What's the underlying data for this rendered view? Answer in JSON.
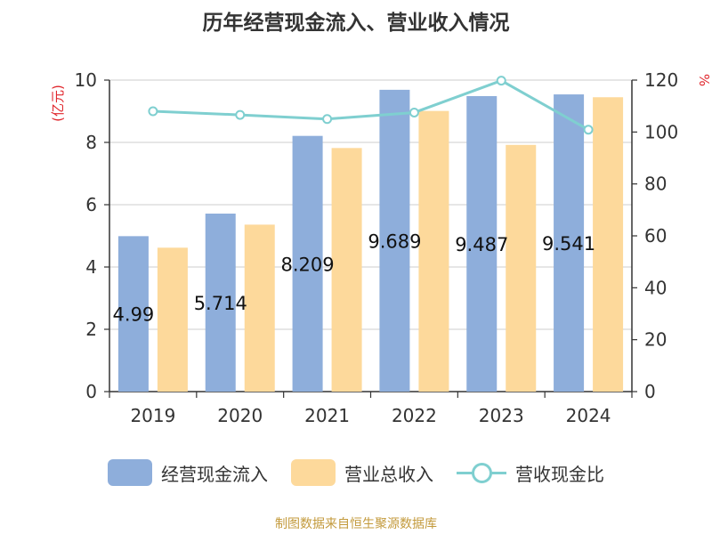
{
  "chart_data": {
    "type": "bar",
    "title": "历年经营现金流入、营业收入情况",
    "categories": [
      "2019",
      "2020",
      "2021",
      "2022",
      "2023",
      "2024"
    ],
    "series": [
      {
        "name": "经营现金流入",
        "type": "bar",
        "axis": "left",
        "color": "#8eaedb",
        "values": [
          4.99,
          5.714,
          8.209,
          9.689,
          9.487,
          9.541
        ],
        "data_labels": [
          "4.99",
          "5.714",
          "8.209",
          "9.689",
          "9.487",
          "9.541"
        ]
      },
      {
        "name": "营业总收入",
        "type": "bar",
        "axis": "left",
        "color": "#fdd99b",
        "values": [
          4.62,
          5.36,
          7.82,
          9.01,
          7.92,
          9.45
        ]
      },
      {
        "name": "营收现金比",
        "type": "line",
        "axis": "right",
        "color": "#7fcfd0",
        "values": [
          108,
          106.6,
          105,
          107.5,
          119.8,
          100.9
        ]
      }
    ],
    "ylabel_left": "(亿元)",
    "ylabel_right": "%",
    "ylim_left": [
      0,
      10
    ],
    "ylim_right": [
      0,
      120
    ],
    "yticks_left": [
      "0",
      "2",
      "4",
      "6",
      "8",
      "10"
    ],
    "yticks_right": [
      "0",
      "20",
      "40",
      "60",
      "80",
      "100",
      "120"
    ],
    "grid": true,
    "legend_position": "bottom",
    "axis_label_color": "#e0262c"
  },
  "source_text": "制图数据来自恒生聚源数据库"
}
